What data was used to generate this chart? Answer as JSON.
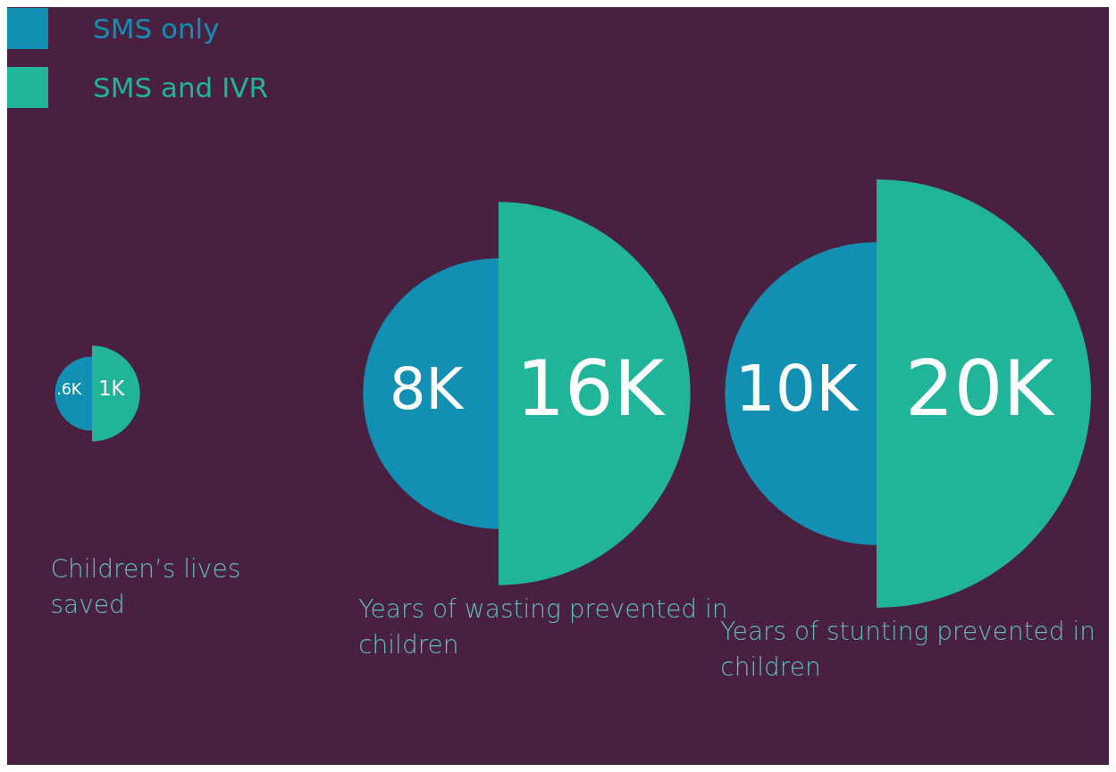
{
  "chart_data": {
    "type": "other",
    "legend": "top left",
    "categories": [
      "Children’s lives saved",
      "Years of wasting prevented in children",
      "Years of stunting prevented in children"
    ],
    "series": [
      {
        "name": "SMS only",
        "color": "#1190b4",
        "values": [
          0.6,
          8,
          10
        ],
        "value_labels": [
          ".6K",
          "8K",
          "10K"
        ]
      },
      {
        "name": "SMS and IVR",
        "color": "#20b598",
        "values": [
          1,
          16,
          20
        ],
        "value_labels": [
          "1K",
          "16K",
          "20K"
        ]
      }
    ]
  }
}
